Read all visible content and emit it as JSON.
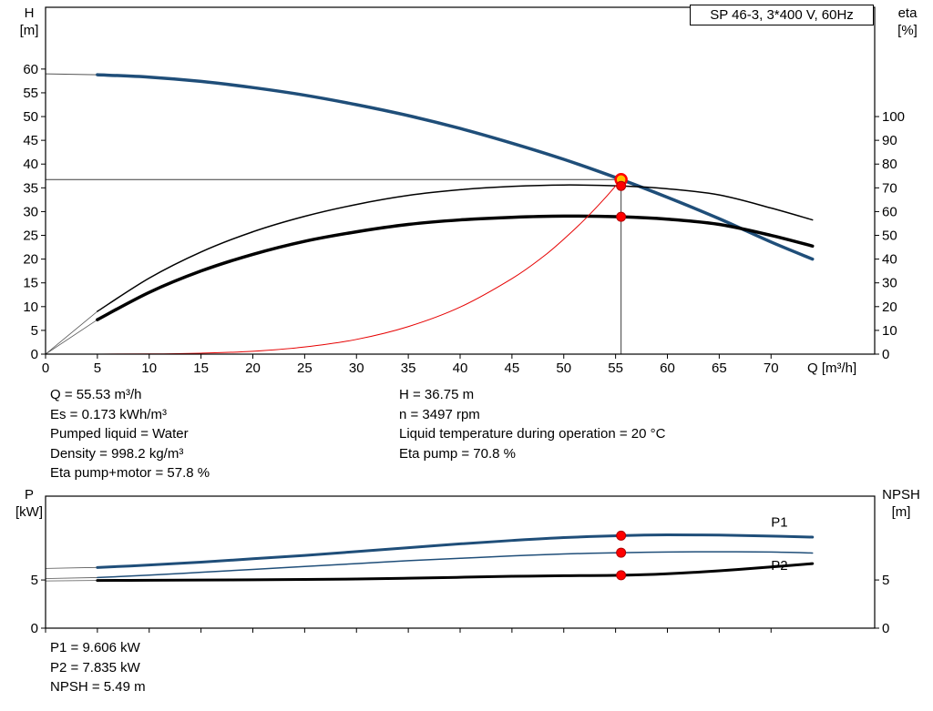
{
  "axes": {
    "top_left_1": "H",
    "top_left_2": "[m]",
    "top_right_1": "eta",
    "top_right_2": "[%]",
    "top_x": "Q [m³/h]",
    "bottom_left_1": "P",
    "bottom_left_2": "[kW]",
    "bottom_right_1": "NPSH",
    "bottom_right_2": "[m]"
  },
  "info_top_left": [
    "Q = 55.53 m³/h",
    "Es = 0.173 kWh/m³",
    "Pumped liquid = Water",
    "Density = 998.2 kg/m³",
    "Eta pump+motor = 57.8 %"
  ],
  "info_top_right": [
    "H = 36.75 m",
    "n = 3497 rpm",
    "Liquid temperature during operation = 20 °C",
    "Eta pump = 70.8 %"
  ],
  "info_bottom": [
    "P1 = 9.606 kW",
    "P2 = 7.835 kW",
    "NPSH = 5.49 m"
  ],
  "colors": {
    "pump_curve_blue": "#1f4e79",
    "eta_curve_black": "#000000",
    "system_curve_red": "#e60000",
    "duty_point_fill": "#ffc000",
    "duty_point_ring": "#ff0000",
    "marker_red": "#ff0000",
    "lead_line_gray": "#555555",
    "crosshair_gray": "#3c3c3c"
  },
  "chart_data": [
    {
      "type": "line",
      "title": "SP 46-3, 3*400 V, 60Hz",
      "xlabel": "Q [m³/h]",
      "ylabel_left": "H [m]",
      "ylabel_right": "eta [%]",
      "xlim": [
        0,
        80
      ],
      "ylim_left": [
        0,
        73
      ],
      "ylim_right": [
        0,
        146
      ],
      "grid": false,
      "x_ticks": [
        0,
        5,
        10,
        15,
        20,
        25,
        30,
        35,
        40,
        45,
        50,
        55,
        60,
        65,
        70
      ],
      "x_tick_labels": true,
      "y_ticks_left": [
        0,
        5,
        10,
        15,
        20,
        25,
        30,
        35,
        40,
        45,
        50,
        55,
        60
      ],
      "y_ticks_right": [
        0,
        10,
        20,
        30,
        40,
        50,
        60,
        70,
        80,
        90,
        100
      ],
      "crosshair": {
        "x": 55.53,
        "y": 36.75
      },
      "series": [
        {
          "name": "pump-curve-lead",
          "axis": "left",
          "color": "#555555",
          "width": 1,
          "points": [
            [
              0,
              59
            ],
            [
              5,
              58.8
            ]
          ]
        },
        {
          "name": "pump-curve",
          "axis": "left",
          "color": "#1f4e79",
          "width": 3.5,
          "points": [
            [
              5,
              58.8
            ],
            [
              10,
              58.3
            ],
            [
              15,
              57.4
            ],
            [
              20,
              56.1
            ],
            [
              25,
              54.5
            ],
            [
              30,
              52.5
            ],
            [
              35,
              50.2
            ],
            [
              40,
              47.5
            ],
            [
              45,
              44.4
            ],
            [
              50,
              41.0
            ],
            [
              55.53,
              36.75
            ],
            [
              60,
              33.0
            ],
            [
              65,
              28.5
            ],
            [
              70,
              23.6
            ],
            [
              74,
              20.0
            ]
          ]
        },
        {
          "name": "eta-pump-lead",
          "axis": "right",
          "color": "#555555",
          "width": 0.8,
          "points": [
            [
              0,
              0
            ],
            [
              5,
              18
            ]
          ]
        },
        {
          "name": "eta-pump-curve",
          "axis": "right",
          "color": "#000000",
          "width": 1.5,
          "points": [
            [
              5,
              18
            ],
            [
              10,
              32
            ],
            [
              15,
              43
            ],
            [
              20,
              51.5
            ],
            [
              25,
              58
            ],
            [
              30,
              63
            ],
            [
              35,
              66.8
            ],
            [
              40,
              69.2
            ],
            [
              45,
              70.6
            ],
            [
              50,
              71.2
            ],
            [
              55.53,
              70.8
            ],
            [
              60,
              69.6
            ],
            [
              65,
              67
            ],
            [
              70,
              61.5
            ],
            [
              74,
              56.5
            ]
          ]
        },
        {
          "name": "eta-pump-motor-lead",
          "axis": "right",
          "color": "#555555",
          "width": 0.8,
          "points": [
            [
              0,
              0
            ],
            [
              5,
              14.5
            ]
          ]
        },
        {
          "name": "eta-pump-motor-curve",
          "axis": "right",
          "color": "#000000",
          "width": 3.5,
          "points": [
            [
              5,
              14.5
            ],
            [
              10,
              26
            ],
            [
              15,
              35
            ],
            [
              20,
              42
            ],
            [
              25,
              47.5
            ],
            [
              30,
              51.5
            ],
            [
              35,
              54.6
            ],
            [
              40,
              56.5
            ],
            [
              45,
              57.6
            ],
            [
              50,
              58.1
            ],
            [
              55.53,
              57.8
            ],
            [
              60,
              56.8
            ],
            [
              65,
              54.6
            ],
            [
              70,
              50.0
            ],
            [
              74,
              45.5
            ]
          ]
        },
        {
          "name": "system-curve",
          "axis": "left",
          "color": "#e60000",
          "width": 1,
          "points": [
            [
              0,
              0
            ],
            [
              10,
              0.04
            ],
            [
              15,
              0.2
            ],
            [
              20,
              0.6
            ],
            [
              25,
              1.5
            ],
            [
              30,
              3.1
            ],
            [
              35,
              5.8
            ],
            [
              40,
              9.9
            ],
            [
              45,
              15.9
            ],
            [
              48,
              20.5
            ],
            [
              50,
              24.2
            ],
            [
              52,
              28.3
            ],
            [
              54,
              32.9
            ],
            [
              55.53,
              36.75
            ]
          ]
        }
      ],
      "markers": [
        {
          "name": "duty-point",
          "x": 55.53,
          "y": 36.75,
          "axis": "left",
          "r": 6,
          "fill": "#ffc000",
          "stroke": "#ff0000",
          "sw": 2.5
        },
        {
          "name": "eta-pump-point",
          "x": 55.53,
          "y": 70.8,
          "axis": "right",
          "r": 5,
          "fill": "#ff0000",
          "stroke": "#b00000",
          "sw": 1
        },
        {
          "name": "eta-pump-motor-point",
          "x": 55.53,
          "y": 57.8,
          "axis": "right",
          "r": 5,
          "fill": "#ff0000",
          "stroke": "#b00000",
          "sw": 1
        }
      ],
      "annotations": []
    },
    {
      "type": "line",
      "title": "",
      "xlabel": "",
      "ylabel_left": "P [kW]",
      "ylabel_right": "NPSH [m]",
      "xlim": [
        0,
        80
      ],
      "ylim_left": [
        0,
        13.7
      ],
      "ylim_right": [
        0,
        13.7
      ],
      "grid": false,
      "x_ticks": [
        0,
        5,
        10,
        15,
        20,
        25,
        30,
        35,
        40,
        45,
        50,
        55,
        60,
        65,
        70
      ],
      "x_tick_labels": false,
      "y_ticks_left": [
        0,
        5
      ],
      "y_ticks_right": [
        0,
        5
      ],
      "crosshair": null,
      "series": [
        {
          "name": "p1-lead",
          "axis": "left",
          "color": "#555555",
          "width": 0.8,
          "points": [
            [
              0,
              6.2
            ],
            [
              5,
              6.3
            ]
          ]
        },
        {
          "name": "p1-curve",
          "axis": "left",
          "color": "#1f4e79",
          "width": 3,
          "points": [
            [
              5,
              6.3
            ],
            [
              10,
              6.55
            ],
            [
              15,
              6.85
            ],
            [
              20,
              7.2
            ],
            [
              25,
              7.55
            ],
            [
              30,
              7.95
            ],
            [
              35,
              8.35
            ],
            [
              40,
              8.75
            ],
            [
              45,
              9.1
            ],
            [
              50,
              9.4
            ],
            [
              55.53,
              9.606
            ],
            [
              60,
              9.68
            ],
            [
              65,
              9.66
            ],
            [
              70,
              9.55
            ],
            [
              74,
              9.45
            ]
          ]
        },
        {
          "name": "p2-lead",
          "axis": "left",
          "color": "#555555",
          "width": 0.8,
          "points": [
            [
              0,
              5.15
            ],
            [
              5,
              5.25
            ]
          ]
        },
        {
          "name": "p2-curve",
          "axis": "left",
          "color": "#1f4e79",
          "width": 1.5,
          "points": [
            [
              5,
              5.25
            ],
            [
              10,
              5.5
            ],
            [
              15,
              5.8
            ],
            [
              20,
              6.1
            ],
            [
              25,
              6.4
            ],
            [
              30,
              6.7
            ],
            [
              35,
              7.0
            ],
            [
              40,
              7.25
            ],
            [
              45,
              7.5
            ],
            [
              50,
              7.7
            ],
            [
              55.53,
              7.835
            ],
            [
              60,
              7.9
            ],
            [
              65,
              7.93
            ],
            [
              70,
              7.9
            ],
            [
              74,
              7.8
            ]
          ]
        },
        {
          "name": "npsh-lead",
          "axis": "right",
          "color": "#555555",
          "width": 0.8,
          "points": [
            [
              0,
              4.9
            ],
            [
              5,
              4.95
            ]
          ]
        },
        {
          "name": "npsh-curve",
          "axis": "right",
          "color": "#000000",
          "width": 3,
          "points": [
            [
              5,
              4.95
            ],
            [
              10,
              4.97
            ],
            [
              15,
              5.0
            ],
            [
              20,
              5.02
            ],
            [
              25,
              5.06
            ],
            [
              30,
              5.1
            ],
            [
              35,
              5.18
            ],
            [
              40,
              5.28
            ],
            [
              45,
              5.38
            ],
            [
              50,
              5.44
            ],
            [
              55.53,
              5.49
            ],
            [
              60,
              5.65
            ],
            [
              65,
              5.95
            ],
            [
              70,
              6.35
            ],
            [
              74,
              6.7
            ]
          ]
        }
      ],
      "markers": [
        {
          "name": "p1-point",
          "x": 55.53,
          "y": 9.606,
          "axis": "left",
          "r": 5,
          "fill": "#ff0000",
          "stroke": "#b00000",
          "sw": 1
        },
        {
          "name": "p2-point",
          "x": 55.53,
          "y": 7.835,
          "axis": "left",
          "r": 5,
          "fill": "#ff0000",
          "stroke": "#b00000",
          "sw": 1
        },
        {
          "name": "npsh-point",
          "x": 55.53,
          "y": 5.49,
          "axis": "right",
          "r": 5,
          "fill": "#ff0000",
          "stroke": "#b00000",
          "sw": 1
        }
      ],
      "annotations": [
        {
          "text": "P1",
          "x": 70,
          "y": 10.55,
          "axis": "left",
          "color": "#1f4e79"
        },
        {
          "text": "P2",
          "x": 70,
          "y": 6.05,
          "axis": "left",
          "color": "#1f4e79"
        }
      ]
    }
  ]
}
